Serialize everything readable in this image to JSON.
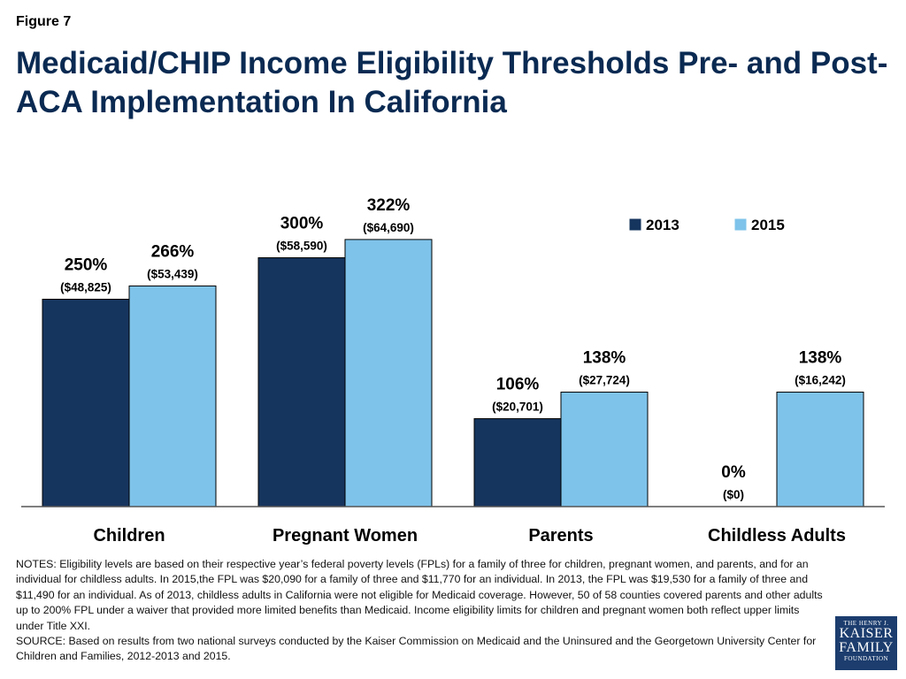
{
  "figure_label": "Figure 7",
  "title": "Medicaid/CHIP Income Eligibility Thresholds Pre- and Post-ACA Implementation In California",
  "colors": {
    "series_2013": "#16355e",
    "series_2015": "#7ec3ea",
    "title": "#0a2a52"
  },
  "chart_data": {
    "type": "bar",
    "categories": [
      "Children",
      "Pregnant Women",
      "Parents",
      "Childless Adults"
    ],
    "ylim": [
      0,
      340
    ],
    "grid": false,
    "legend_position": "top-right",
    "series": [
      {
        "name": "2013",
        "values": [
          250,
          300,
          106,
          0
        ],
        "value_labels": [
          "250%",
          "300%",
          "106%",
          "0%"
        ],
        "dollar_labels": [
          "($48,825)",
          "($58,590)",
          "($20,701)",
          "($0)"
        ]
      },
      {
        "name": "2015",
        "values": [
          266,
          322,
          138,
          138
        ],
        "value_labels": [
          "266%",
          "322%",
          "138%",
          "138%"
        ],
        "dollar_labels": [
          "($53,439)",
          "($64,690)",
          "($27,724)",
          "($16,242)"
        ]
      }
    ]
  },
  "notes": "NOTES: Eligibility levels are based on their respective year’s federal poverty levels (FPLs) for a family of three for children, pregnant women, and parents, and for an individual for childless adults. In 2015,the FPL was $20,090 for a family of three and $11,770 for an individual. In 2013, the FPL was $19,530 for a family of three and $11,490 for an individual. As of 2013, childless adults in California were not eligible for Medicaid coverage. However, 50 of 58 counties covered parents and other adults up to 200% FPL under a waiver that provided more limited benefits than Medicaid. Income eligibility limits for children and pregnant women both reflect upper limits under Title XXI.",
  "source": "SOURCE: Based on results from two national surveys conducted by the Kaiser Commission on Medicaid and the Uninsured and the Georgetown University Center for Children and Families, 2012-2013 and 2015.",
  "logo": {
    "line1": "THE HENRY J.",
    "line2": "KAISER",
    "line3": "FAMILY",
    "line4": "FOUNDATION"
  }
}
